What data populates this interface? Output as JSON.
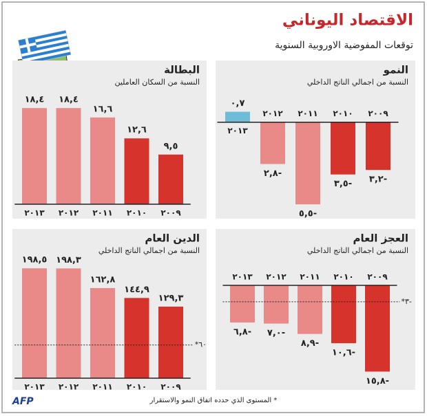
{
  "header": {
    "title": "الاقتصاد اليوناني",
    "subtitle": "توقعات المفوضية الاوروبية السنوية"
  },
  "chart_data": [
    {
      "type": "bar",
      "title": "النمو",
      "subtitle": "النسبة من اجمالي الناتج الداخلي",
      "categories": [
        "٢٠١٣",
        "٢٠١٢",
        "٢٠١١",
        "٢٠١٠",
        "٢٠٠٩"
      ],
      "values": [
        0.7,
        -2.8,
        -5.5,
        -3.5,
        -3.2
      ],
      "value_labels": [
        "٠,٧",
        "٢,٨-",
        "٥,٥-",
        "٣,٥-",
        "٣,٢-"
      ],
      "colors": [
        "#6dbcd8",
        "#e98a89",
        "#e98a89",
        "#d6332c",
        "#d6332c"
      ],
      "ylim": [
        -6,
        1
      ]
    },
    {
      "type": "bar",
      "title": "البطالة",
      "subtitle": "النسبة من السكان العاملين",
      "categories": [
        "٢٠١٣",
        "٢٠١٢",
        "٢٠١١",
        "٢٠١٠",
        "٢٠٠٩"
      ],
      "values": [
        18.4,
        18.4,
        16.6,
        12.6,
        9.5
      ],
      "value_labels": [
        "١٨,٤",
        "١٨,٤",
        "١٦,٦",
        "١٢,٦",
        "٩,٥"
      ],
      "colors": [
        "#e98a89",
        "#e98a89",
        "#e98a89",
        "#d6332c",
        "#d6332c"
      ],
      "ylim": [
        0,
        20
      ]
    },
    {
      "type": "bar",
      "title": "العجز العام",
      "subtitle": "النسبة من اجمالي الناتج الداخلي",
      "categories": [
        "٢٠١٣",
        "٢٠١٢",
        "٢٠١١",
        "٢٠١٠",
        "٢٠٠٩"
      ],
      "values": [
        -6.8,
        -7.0,
        -8.9,
        -10.6,
        -15.8
      ],
      "value_labels": [
        "٦,٨-",
        "٧,٠-",
        "٨,٩-",
        "١٠,٦-",
        "١٥,٨-"
      ],
      "colors": [
        "#e98a89",
        "#e98a89",
        "#e98a89",
        "#d6332c",
        "#d6332c"
      ],
      "ylim": [
        -16,
        0
      ],
      "reference_line": {
        "value": -3,
        "label": "*٣-"
      }
    },
    {
      "type": "bar",
      "title": "الدين العام",
      "subtitle": "النسبة من اجمالي الناتج الداخلي",
      "categories": [
        "٢٠١٣",
        "٢٠١٢",
        "٢٠١١",
        "٢٠١٠",
        "٢٠٠٩"
      ],
      "values": [
        198.5,
        198.3,
        162.8,
        144.9,
        129.3
      ],
      "value_labels": [
        "١٩٨,٥",
        "١٩٨,٣",
        "١٦٢,٨",
        "١٤٤,٩",
        "١٢٩,٣"
      ],
      "colors": [
        "#e98a89",
        "#e98a89",
        "#e98a89",
        "#d6332c",
        "#d6332c"
      ],
      "ylim": [
        0,
        200
      ],
      "reference_line": {
        "value": 60,
        "label": "*٦٠"
      }
    }
  ],
  "footnote": "* المستوى الذي حدده اتفاق النمو والاستقرار",
  "logo": "AFP"
}
